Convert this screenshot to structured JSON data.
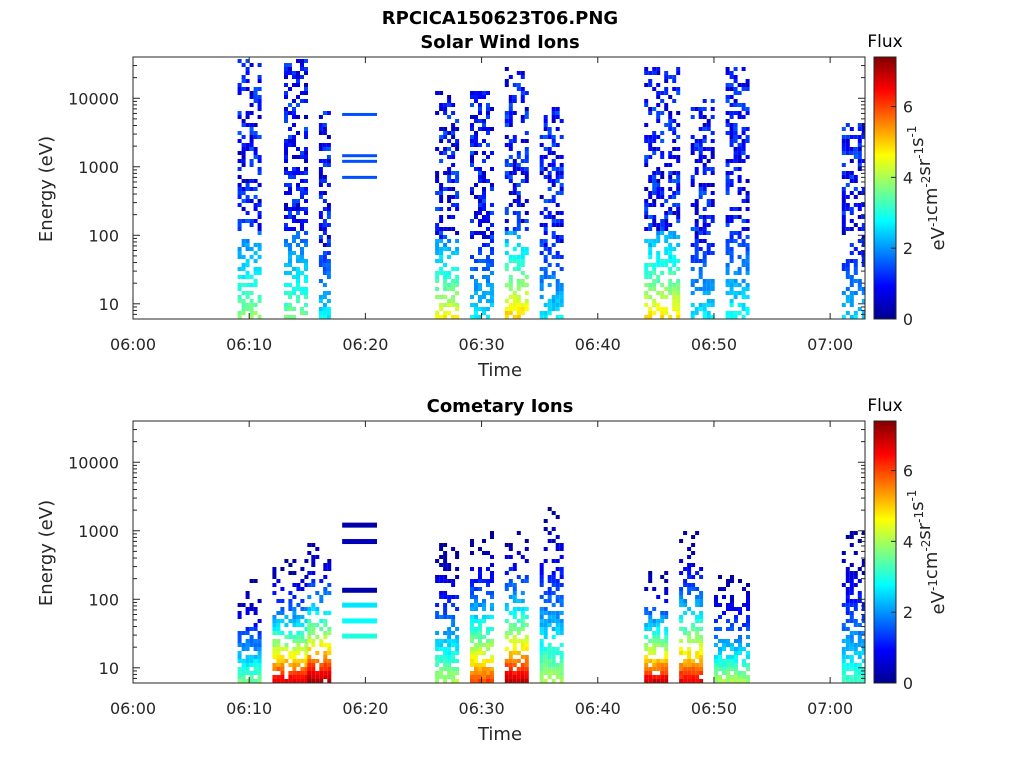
{
  "figure_title": "RPCICA150623T06.PNG",
  "colorbar": {
    "label": "Flux",
    "unit_parts": [
      "eV",
      "-1",
      "cm",
      "-2",
      "sr",
      "-1",
      "s",
      "-1"
    ],
    "ticks": [
      "0",
      "2",
      "4",
      "6"
    ],
    "range": [
      0,
      7.4
    ],
    "colormap": "jet"
  },
  "colors": {
    "axis": "#262626",
    "background": "#ffffff"
  },
  "chart_data": [
    {
      "type": "heatmap",
      "title": "Solar Wind Ions",
      "xlabel": "Time",
      "ylabel": "Energy (eV)",
      "y_scale": "log",
      "xlim": [
        "06:00",
        "07:03"
      ],
      "ylim": [
        6,
        40000
      ],
      "x_ticks": [
        "06:00",
        "06:10",
        "06:20",
        "06:30",
        "06:40",
        "06:50",
        "07:00"
      ],
      "y_ticks": [
        "10",
        "100",
        "1000",
        "10000"
      ],
      "bursts": [
        {
          "start": "06:09",
          "end": "06:11",
          "emax": 40000,
          "peak_flux": 3.8
        },
        {
          "start": "06:13",
          "end": "06:15",
          "emax": 40000,
          "peak_flux": 3.6
        },
        {
          "start": "06:16",
          "end": "06:17",
          "emax": 8000,
          "peak_flux": 2.6
        },
        {
          "start": "06:26",
          "end": "06:28",
          "emax": 14000,
          "peak_flux": 4.6
        },
        {
          "start": "06:29",
          "end": "06:31",
          "emax": 14000,
          "peak_flux": 2.6
        },
        {
          "start": "06:32",
          "end": "06:34",
          "emax": 30000,
          "peak_flux": 5.0
        },
        {
          "start": "06:35",
          "end": "06:37",
          "emax": 8000,
          "peak_flux": 2.6
        },
        {
          "start": "06:44",
          "end": "06:47",
          "emax": 30000,
          "peak_flux": 4.8
        },
        {
          "start": "06:48",
          "end": "06:50",
          "emax": 10000,
          "peak_flux": 2.6
        },
        {
          "start": "06:51",
          "end": "06:53",
          "emax": 30000,
          "peak_flux": 2.8
        },
        {
          "start": "07:01",
          "end": "07:03",
          "emax": 5000,
          "peak_flux": 2.4
        }
      ],
      "lines": [
        {
          "start": "06:18",
          "end": "06:21",
          "energy": 5800,
          "flux": 1.5
        },
        {
          "start": "06:18",
          "end": "06:21",
          "energy": 1450,
          "flux": 1.5
        },
        {
          "start": "06:18",
          "end": "06:21",
          "energy": 1200,
          "flux": 1.5
        },
        {
          "start": "06:18",
          "end": "06:21",
          "energy": 700,
          "flux": 1.5
        }
      ]
    },
    {
      "type": "heatmap",
      "title": "Cometary Ions",
      "xlabel": "Time",
      "ylabel": "Energy (eV)",
      "y_scale": "log",
      "xlim": [
        "06:00",
        "07:03"
      ],
      "ylim": [
        6,
        40000
      ],
      "x_ticks": [
        "06:00",
        "06:10",
        "06:20",
        "06:30",
        "06:40",
        "06:50",
        "07:00"
      ],
      "y_ticks": [
        "10",
        "100",
        "1000",
        "10000"
      ],
      "bursts": [
        {
          "start": "06:09",
          "end": "06:11",
          "emax": 200,
          "peak_flux": 3.6
        },
        {
          "start": "06:12",
          "end": "06:15",
          "emax": 400,
          "peak_flux": 6.8
        },
        {
          "start": "06:15",
          "end": "06:17",
          "emax": 800,
          "peak_flux": 7.3
        },
        {
          "start": "06:26",
          "end": "06:28",
          "emax": 700,
          "peak_flux": 4.0
        },
        {
          "start": "06:29",
          "end": "06:31",
          "emax": 1000,
          "peak_flux": 6.0
        },
        {
          "start": "06:32",
          "end": "06:34",
          "emax": 1200,
          "peak_flux": 7.0
        },
        {
          "start": "06:35",
          "end": "06:37",
          "emax": 2500,
          "peak_flux": 4.0
        },
        {
          "start": "06:44",
          "end": "06:46",
          "emax": 300,
          "peak_flux": 7.0
        },
        {
          "start": "06:47",
          "end": "06:49",
          "emax": 1000,
          "peak_flux": 6.6
        },
        {
          "start": "06:50",
          "end": "06:53",
          "emax": 250,
          "peak_flux": 4.0
        },
        {
          "start": "07:01",
          "end": "07:03",
          "emax": 1000,
          "peak_flux": 3.2
        }
      ],
      "lines": [
        {
          "start": "06:18",
          "end": "06:21",
          "energy": 1250,
          "flux": 0.3
        },
        {
          "start": "06:18",
          "end": "06:21",
          "energy": 720,
          "flux": 0.4
        },
        {
          "start": "06:18",
          "end": "06:21",
          "energy": 140,
          "flux": 0.3
        },
        {
          "start": "06:18",
          "end": "06:21",
          "energy": 85,
          "flux": 2.6
        },
        {
          "start": "06:18",
          "end": "06:21",
          "energy": 50,
          "flux": 2.8
        },
        {
          "start": "06:18",
          "end": "06:21",
          "energy": 30,
          "flux": 3.0
        }
      ]
    }
  ]
}
